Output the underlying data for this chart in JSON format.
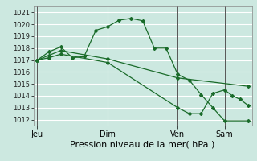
{
  "bg_color": "#cce8e0",
  "grid_color": "#ffffff",
  "line_color": "#1a6b2a",
  "xlabel": "Pression niveau de la mer( hPa )",
  "ylim": [
    1011.5,
    1021.5
  ],
  "yticks": [
    1012,
    1013,
    1014,
    1015,
    1016,
    1017,
    1018,
    1019,
    1020,
    1021
  ],
  "day_labels": [
    "Jeu",
    "Dim",
    "Ven",
    "Sam"
  ],
  "day_positions": [
    0,
    36,
    72,
    96
  ],
  "line1_x": [
    0,
    6,
    12,
    18,
    24,
    30,
    36,
    42,
    48,
    54,
    60,
    66,
    72,
    78,
    84,
    90,
    96,
    108
  ],
  "line1_y": [
    1017.0,
    1017.7,
    1018.1,
    1017.2,
    1017.3,
    1019.5,
    1019.8,
    1020.35,
    1020.5,
    1020.3,
    1018.0,
    1018.0,
    1015.8,
    1015.3,
    1014.1,
    1013.0,
    1011.9,
    1011.9
  ],
  "line2_x": [
    0,
    6,
    12,
    36,
    72,
    108
  ],
  "line2_y": [
    1017.0,
    1017.4,
    1017.8,
    1017.1,
    1015.5,
    1014.8
  ],
  "line3_x": [
    0,
    6,
    12,
    36,
    72,
    78,
    84,
    90,
    96,
    100,
    104,
    108
  ],
  "line3_y": [
    1017.0,
    1017.2,
    1017.5,
    1016.8,
    1013.0,
    1012.5,
    1012.5,
    1014.2,
    1014.5,
    1014.0,
    1013.7,
    1013.2
  ],
  "vline_color": "#555555",
  "total_hours": 110,
  "xlim_min": -2,
  "tick_fontsize": 6,
  "xlabel_fontsize": 8
}
